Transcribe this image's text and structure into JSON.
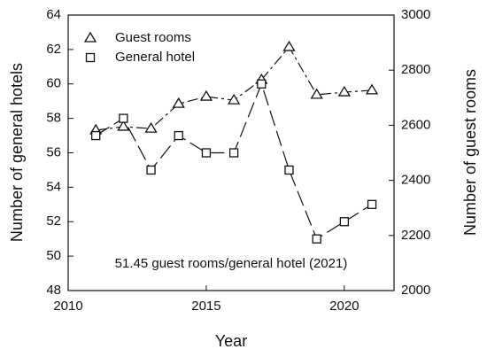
{
  "chart_data": {
    "type": "line",
    "x_label": "Year",
    "y_label": "Number of general hotels",
    "y2_label": "Number of guest rooms",
    "annotation": "51.45 guest rooms/general hotel (2021)",
    "x": [
      2011,
      2012,
      2013,
      2014,
      2015,
      2016,
      2017,
      2018,
      2019,
      2020,
      2021
    ],
    "series": [
      {
        "name": "Guest rooms",
        "color": "#111111",
        "marker": "triangle",
        "axis": "y2",
        "values": [
          2582,
          2595,
          2588,
          2678,
          2704,
          2691,
          2765,
          2884,
          2711,
          2720,
          2727
        ]
      },
      {
        "name": "General hotel",
        "color": "#111111",
        "marker": "square",
        "values": [
          57,
          58,
          55,
          57,
          56,
          56,
          60,
          55,
          51,
          52,
          53
        ]
      }
    ],
    "xlim": [
      2010,
      2021.8
    ],
    "xticks": [
      2010,
      2015,
      2020
    ],
    "ylim": [
      48,
      64
    ],
    "yticks": [
      48,
      50,
      52,
      54,
      56,
      58,
      60,
      62,
      64
    ],
    "y2lim": [
      2000,
      3000
    ],
    "y2ticks": [
      2000,
      2200,
      2400,
      2600,
      2800,
      3000
    ],
    "legend": "upper left"
  }
}
